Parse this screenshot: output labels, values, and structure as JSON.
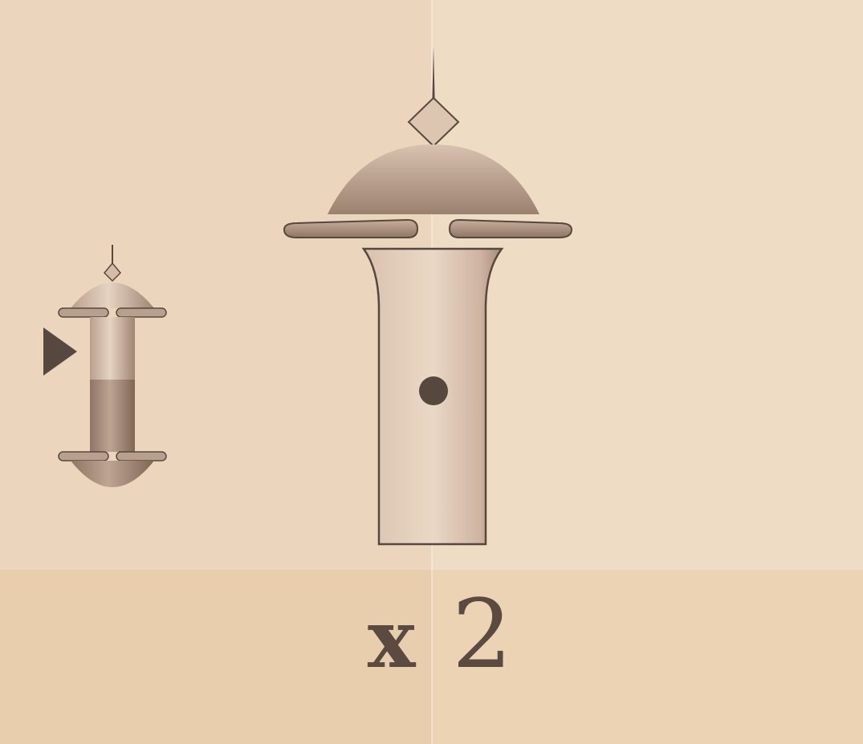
{
  "instruction": {
    "multiplier": "x",
    "quantity": "2"
  },
  "colors": {
    "paper": "#ecd8be",
    "band": "#e8ceac",
    "ink": "#56483f",
    "part_light": "#d6bda6",
    "part_dark": "#a48a78"
  },
  "icons": {
    "pointer": "triangle-right-icon",
    "small_part": "double-ended-rivet-icon",
    "large_part": "domed-rivet-icon"
  }
}
